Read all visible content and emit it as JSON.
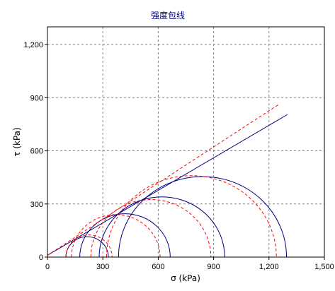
{
  "chart_data": {
    "type": "line",
    "title": "强度包线",
    "xlabel": "σ (kPa)",
    "ylabel": "τ (kPa)",
    "xlim": [
      0,
      1500
    ],
    "ylim": [
      0,
      1300
    ],
    "x_ticks": [
      "0",
      "300",
      "600",
      "900",
      "1,200",
      "1,500"
    ],
    "x_tick_values": [
      0,
      300,
      600,
      900,
      1200,
      1500
    ],
    "y_ticks": [
      "0",
      "300",
      "600",
      "900",
      "1,200"
    ],
    "y_tick_values": [
      0,
      300,
      600,
      900,
      1200
    ],
    "grid": true,
    "series": [
      {
        "style": "solid",
        "color": "#000080",
        "envelope": {
          "x": [
            0,
            1300
          ],
          "y": [
            10,
            805
          ]
        },
        "circles": [
          {
            "center": 215,
            "radius": 115
          },
          {
            "center": 420,
            "radius": 245
          },
          {
            "center": 620,
            "radius": 340
          },
          {
            "center": 840,
            "radius": 455
          }
        ]
      },
      {
        "style": "dashed",
        "color": "#ff0000",
        "envelope": {
          "x": [
            0,
            1250
          ],
          "y": [
            10,
            860
          ]
        },
        "circles": [
          {
            "center": 225,
            "radius": 125
          },
          {
            "center": 370,
            "radius": 240
          },
          {
            "center": 560,
            "radius": 325
          },
          {
            "center": 780,
            "radius": 460
          }
        ]
      }
    ]
  }
}
